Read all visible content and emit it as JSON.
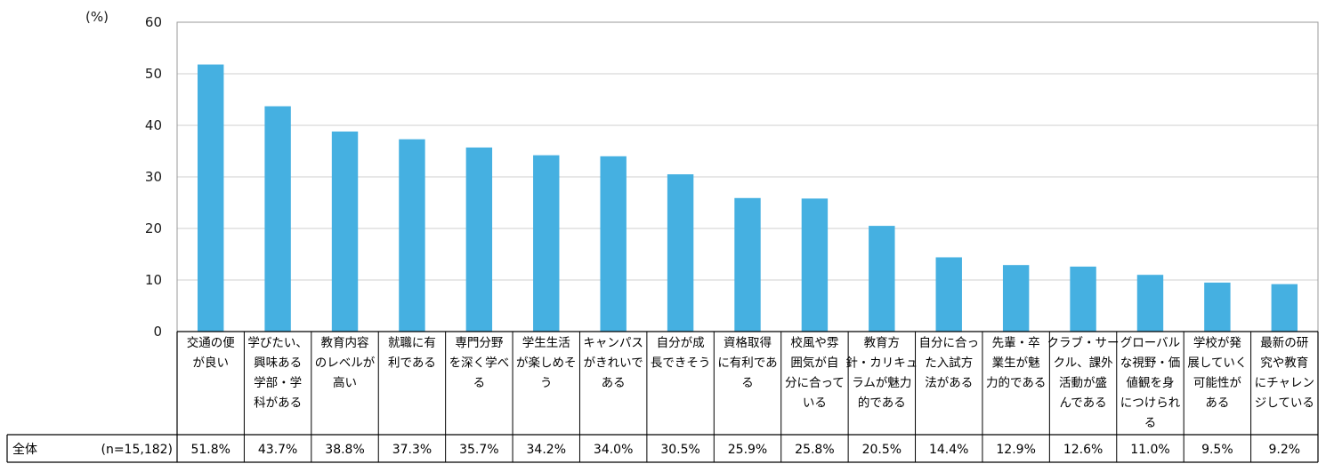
{
  "chart_data": {
    "type": "bar",
    "unit_label": "(%)",
    "ylim": [
      0,
      60
    ],
    "yticks": [
      "0",
      "10",
      "20",
      "30",
      "40",
      "50",
      "60"
    ],
    "grid": true,
    "bar_color": "#45b0e1",
    "categories": [
      [
        "交通の便",
        "が良い"
      ],
      [
        "学びたい、",
        "興味ある",
        "学部・学",
        "科がある"
      ],
      [
        "教育内容",
        "のレベルが",
        "高い"
      ],
      [
        "就職に有",
        "利である"
      ],
      [
        "専門分野",
        "を深く学べ",
        "る"
      ],
      [
        "学生生活",
        "が楽しめそ",
        "う"
      ],
      [
        "キャンパス",
        "がきれいで",
        "ある"
      ],
      [
        "自分が成",
        "長できそう"
      ],
      [
        "資格取得",
        "に有利であ",
        "る"
      ],
      [
        "校風や雰",
        "囲気が自",
        "分に合って",
        "いる"
      ],
      [
        "教育方",
        "針・カリキュ",
        "ラムが魅力",
        "的である"
      ],
      [
        "自分に合っ",
        "た入試方",
        "法がある"
      ],
      [
        "先輩・卒",
        "業生が魅",
        "力的である"
      ],
      [
        "クラブ・サー",
        "クル、課外",
        "活動が盛",
        "んである"
      ],
      [
        "グローバル",
        "な視野・価",
        "値観を身",
        "につけられ",
        "る"
      ],
      [
        "学校が発",
        "展していく",
        "可能性が",
        "ある"
      ],
      [
        "最新の研",
        "究や教育",
        "にチャレン",
        "ジしている"
      ]
    ],
    "series": [
      {
        "name": "全体",
        "n_label": "(n=15,182)",
        "values": [
          51.8,
          43.7,
          38.8,
          37.3,
          35.7,
          34.2,
          34.0,
          30.5,
          25.9,
          25.8,
          20.5,
          14.4,
          12.9,
          12.6,
          11.0,
          9.5,
          9.2
        ],
        "value_labels": [
          "51.8%",
          "43.7%",
          "38.8%",
          "37.3%",
          "35.7%",
          "34.2%",
          "34.0%",
          "30.5%",
          "25.9%",
          "25.8%",
          "20.5%",
          "14.4%",
          "12.9%",
          "12.6%",
          "11.0%",
          "9.5%",
          "9.2%"
        ]
      }
    ]
  }
}
